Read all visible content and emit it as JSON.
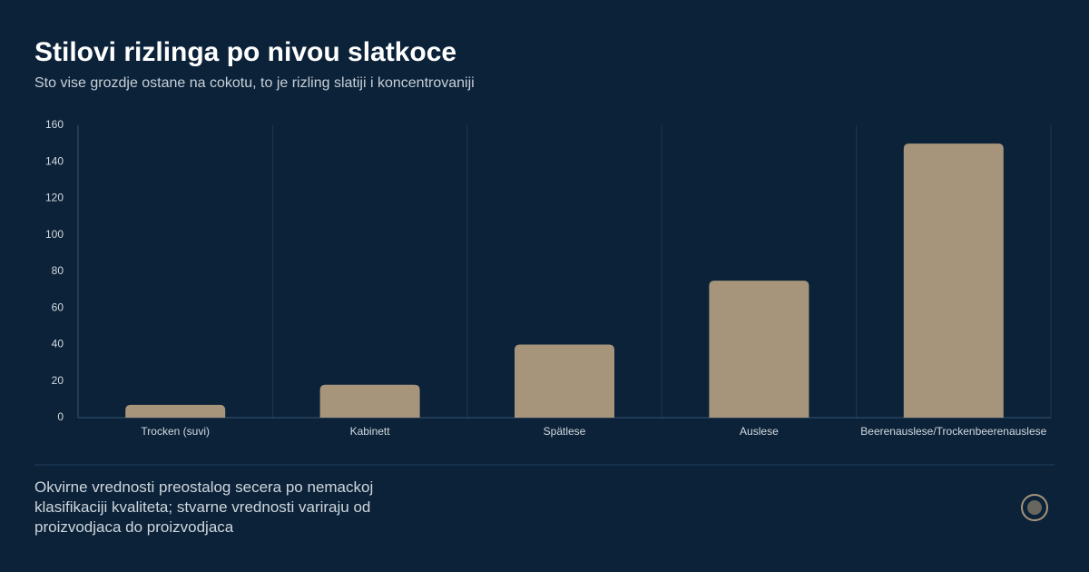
{
  "chart_data": {
    "type": "bar",
    "title": "Stilovi rizlinga po nivou slatkoce",
    "subtitle": "Sto vise grozdje ostane na cokotu, to je rizling slatiji i koncentrovaniji",
    "categories": [
      "Trocken (suvi)",
      "Kabinett",
      "Spätlese",
      "Auslese",
      "Beerenauslese/Trockenbeerenauslese"
    ],
    "values": [
      7,
      18,
      40,
      75,
      150
    ],
    "color": "#a6957a",
    "ylim": [
      0,
      160
    ],
    "yticks": [
      0,
      20,
      40,
      60,
      80,
      100,
      120,
      140,
      160
    ],
    "note": "Okvirne vrednosti preostalog secera po nemackoj klasifikaciji kvaliteta; stvarne vrednosti variraju od proizvodjaca do proizvodjaca"
  }
}
